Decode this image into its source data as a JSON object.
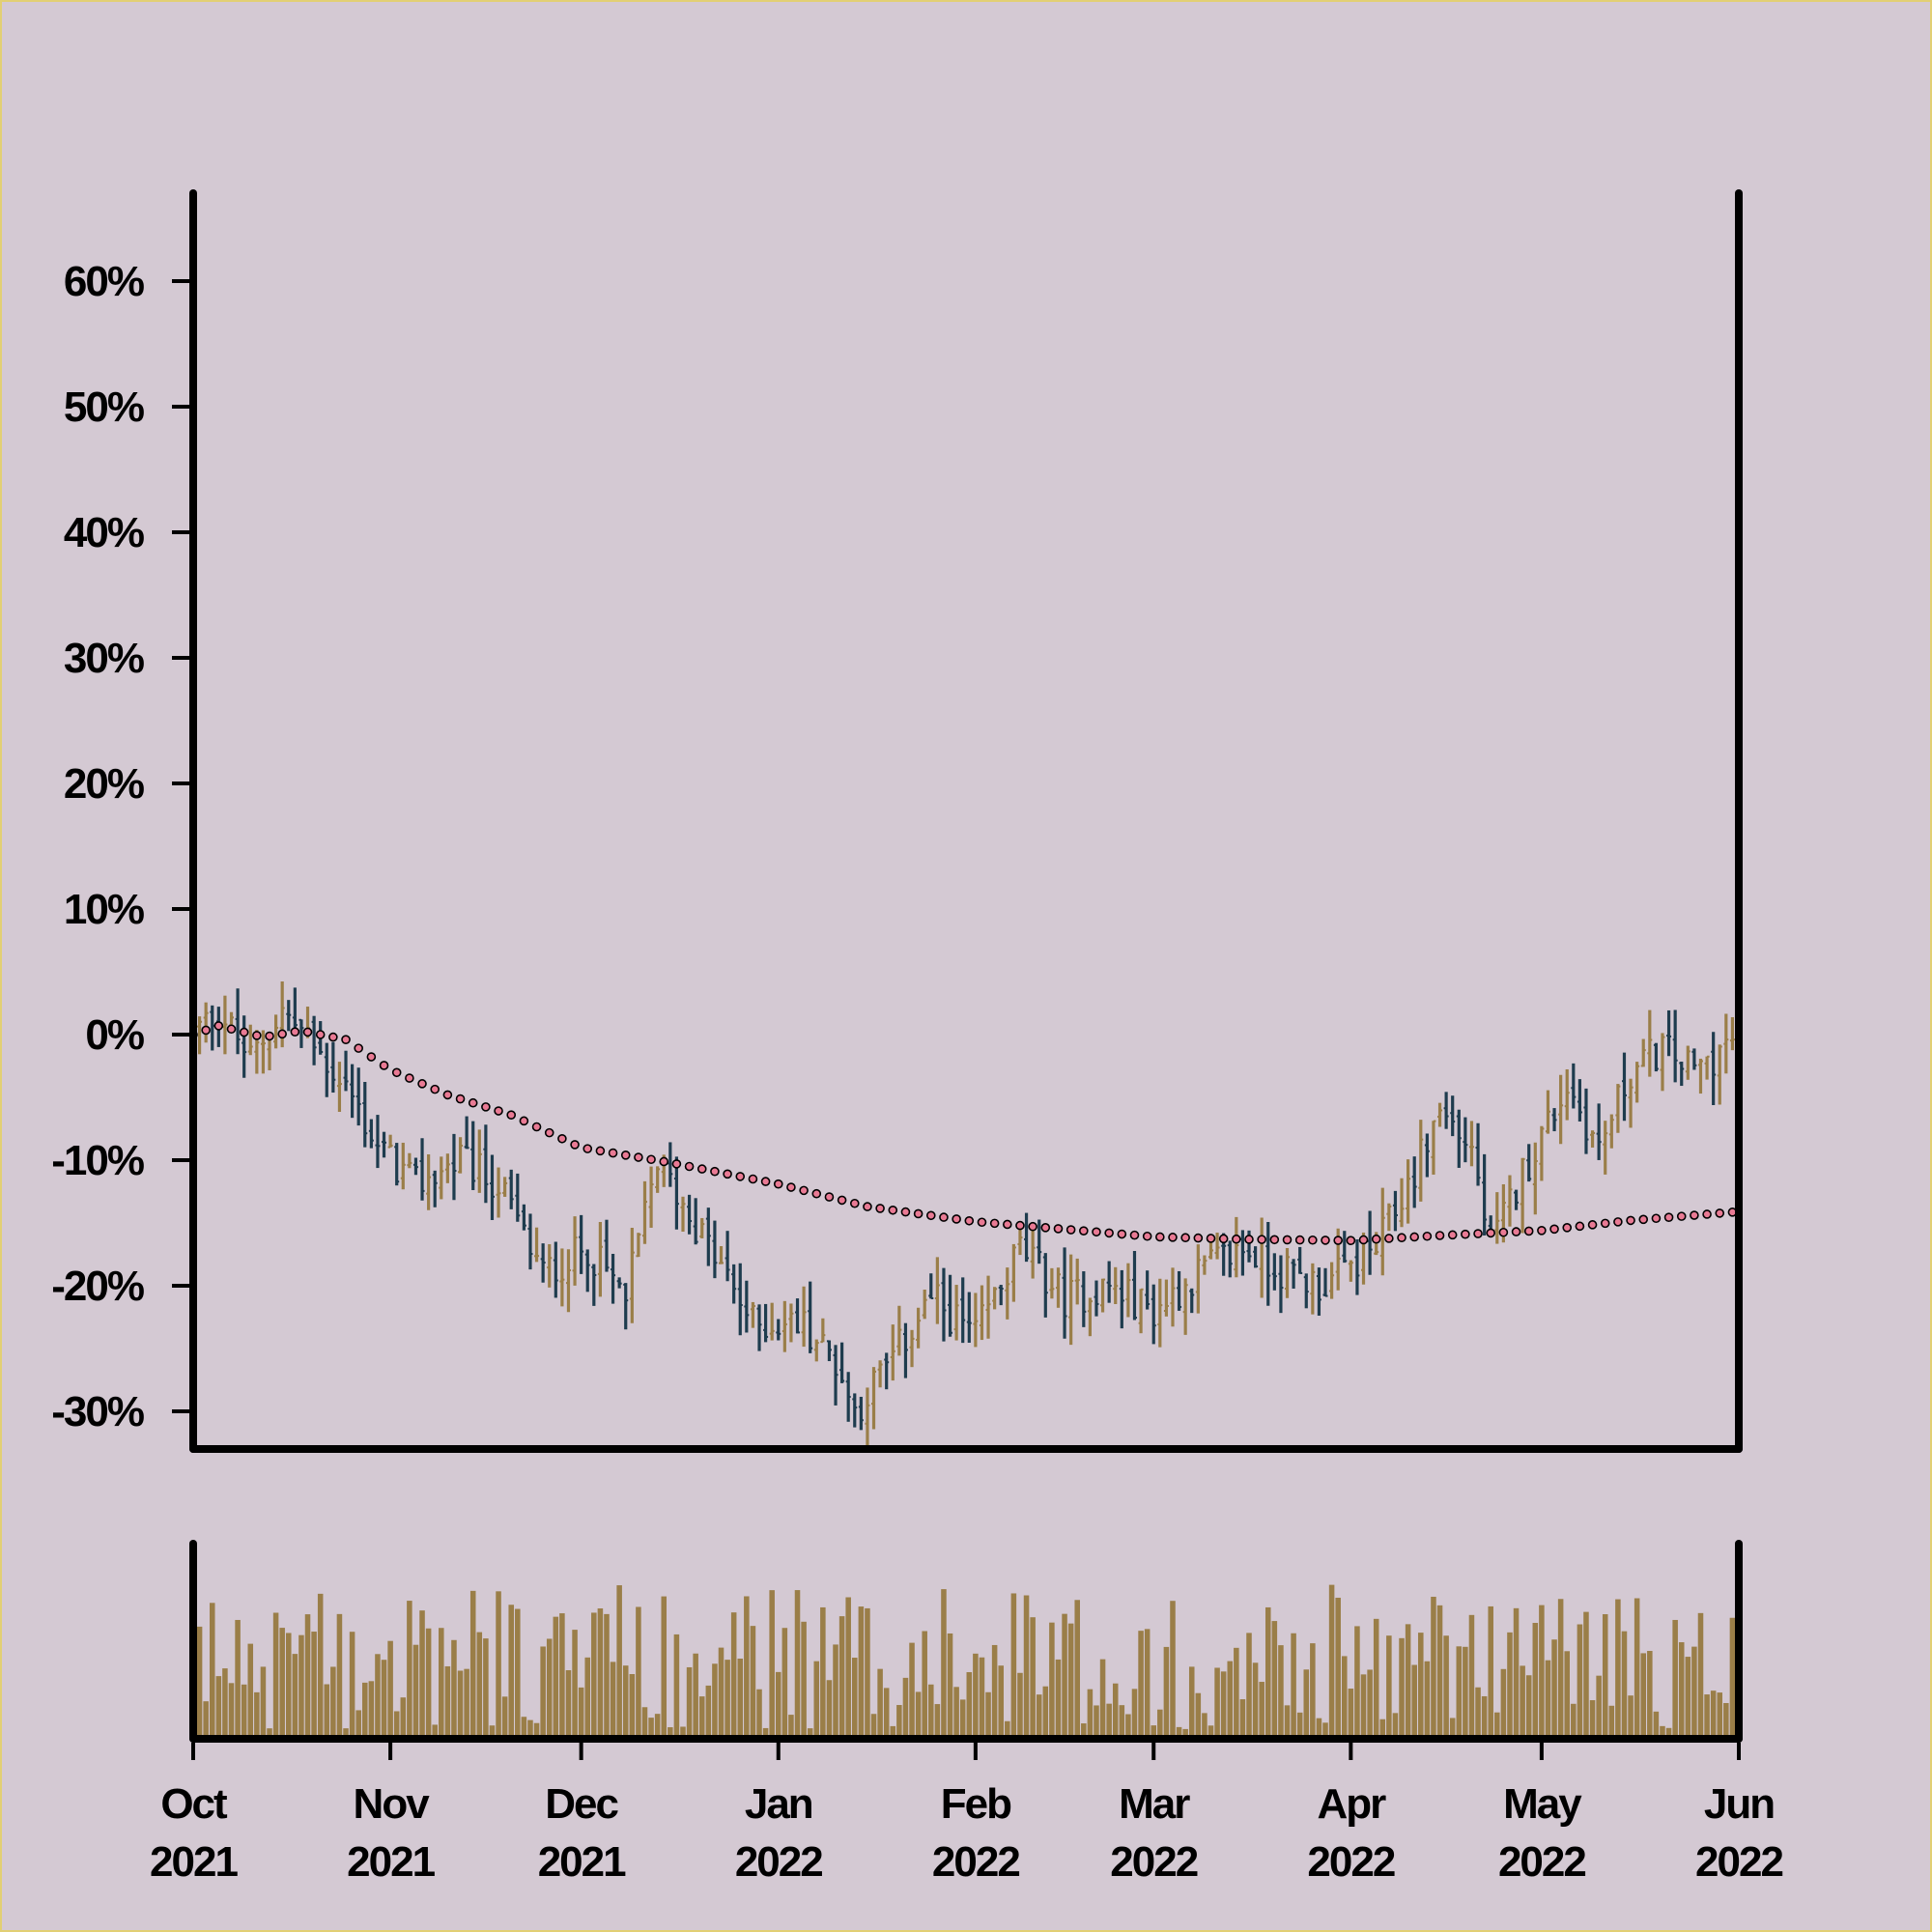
{
  "chart_data": {
    "type": "ohlc",
    "title": "",
    "xlabel": "",
    "ylabel": "",
    "x_range": [
      "2021-10-01",
      "2022-06-01"
    ],
    "ylim": [
      -0.33,
      0.67
    ],
    "y_ticks": [
      {
        "value": 0.6,
        "label": "60%"
      },
      {
        "value": 0.5,
        "label": "50%"
      },
      {
        "value": 0.4,
        "label": "40%"
      },
      {
        "value": 0.3,
        "label": "30%"
      },
      {
        "value": 0.2,
        "label": "20%"
      },
      {
        "value": 0.1,
        "label": "10%"
      },
      {
        "value": 0.0,
        "label": "0%"
      },
      {
        "value": -0.1,
        "label": "-10%"
      },
      {
        "value": -0.2,
        "label": "-20%"
      },
      {
        "value": -0.3,
        "label": "-30%"
      }
    ],
    "x_ticks": [
      {
        "date": "2021-10-01",
        "month": "Oct",
        "year": "2021"
      },
      {
        "date": "2021-11-01",
        "month": "Nov",
        "year": "2021"
      },
      {
        "date": "2021-12-01",
        "month": "Dec",
        "year": "2021"
      },
      {
        "date": "2022-01-01",
        "month": "Jan",
        "year": "2022"
      },
      {
        "date": "2022-02-01",
        "month": "Feb",
        "year": "2022"
      },
      {
        "date": "2022-03-01",
        "month": "Mar",
        "year": "2022"
      },
      {
        "date": "2022-04-01",
        "month": "Apr",
        "year": "2022"
      },
      {
        "date": "2022-05-01",
        "month": "May",
        "year": "2022"
      },
      {
        "date": "2022-06-01",
        "month": "Jun",
        "year": "2022"
      }
    ],
    "price_trend": [
      [
        "2021-10-01",
        0.0
      ],
      [
        "2021-10-05",
        0.02
      ],
      [
        "2021-10-10",
        -0.02
      ],
      [
        "2021-10-15",
        0.02
      ],
      [
        "2021-10-20",
        -0.01
      ],
      [
        "2021-10-25",
        -0.04
      ],
      [
        "2021-10-30",
        -0.09
      ],
      [
        "2021-11-05",
        -0.12
      ],
      [
        "2021-11-12",
        -0.1
      ],
      [
        "2021-11-18",
        -0.12
      ],
      [
        "2021-11-25",
        -0.19
      ],
      [
        "2021-12-02",
        -0.17
      ],
      [
        "2021-12-08",
        -0.21
      ],
      [
        "2021-12-13",
        -0.1
      ],
      [
        "2021-12-20",
        -0.16
      ],
      [
        "2021-12-28",
        -0.23
      ],
      [
        "2022-01-05",
        -0.23
      ],
      [
        "2022-01-10",
        -0.26
      ],
      [
        "2022-01-13",
        -0.3
      ],
      [
        "2022-01-20",
        -0.25
      ],
      [
        "2022-01-25",
        -0.21
      ],
      [
        "2022-02-01",
        -0.24
      ],
      [
        "2022-02-08",
        -0.17
      ],
      [
        "2022-02-15",
        -0.21
      ],
      [
        "2022-02-22",
        -0.2
      ],
      [
        "2022-03-01",
        -0.22
      ],
      [
        "2022-03-08",
        -0.19
      ],
      [
        "2022-03-15",
        -0.17
      ],
      [
        "2022-03-22",
        -0.19
      ],
      [
        "2022-03-28",
        -0.2
      ],
      [
        "2022-04-05",
        -0.17
      ],
      [
        "2022-04-10",
        -0.12
      ],
      [
        "2022-04-15",
        -0.06
      ],
      [
        "2022-04-20",
        -0.09
      ],
      [
        "2022-04-23",
        -0.17
      ],
      [
        "2022-04-28",
        -0.11
      ],
      [
        "2022-05-05",
        -0.04
      ],
      [
        "2022-05-10",
        -0.09
      ],
      [
        "2022-05-15",
        -0.03
      ],
      [
        "2022-05-20",
        -0.01
      ],
      [
        "2022-05-25",
        -0.03
      ],
      [
        "2022-06-01",
        0.0
      ]
    ],
    "moving_average": [
      [
        "2021-10-01",
        0.0
      ],
      [
        "2021-10-05",
        0.007
      ],
      [
        "2021-10-12",
        -0.002
      ],
      [
        "2021-10-18",
        0.003
      ],
      [
        "2021-10-25",
        -0.004
      ],
      [
        "2021-11-01",
        -0.028
      ],
      [
        "2021-11-10",
        -0.048
      ],
      [
        "2021-11-20",
        -0.064
      ],
      [
        "2021-12-01",
        -0.09
      ],
      [
        "2021-12-15",
        -0.102
      ],
      [
        "2022-01-01",
        -0.119
      ],
      [
        "2022-01-15",
        -0.137
      ],
      [
        "2022-02-01",
        -0.149
      ],
      [
        "2022-02-15",
        -0.155
      ],
      [
        "2022-03-01",
        -0.161
      ],
      [
        "2022-03-15",
        -0.163
      ],
      [
        "2022-04-01",
        -0.164
      ],
      [
        "2022-04-15",
        -0.16
      ],
      [
        "2022-05-01",
        -0.156
      ],
      [
        "2022-05-15",
        -0.148
      ],
      [
        "2022-06-01",
        -0.141
      ]
    ],
    "colors": {
      "up": "#9a7e48",
      "down": "#1e3c4e",
      "moving_average_marker": "#e97a94",
      "volume": "#9a7e48",
      "axes": "#000000",
      "background": "#d4c9d3",
      "border": "#e2cf73"
    },
    "volume_panel": true,
    "legend": "none",
    "grid": false
  }
}
